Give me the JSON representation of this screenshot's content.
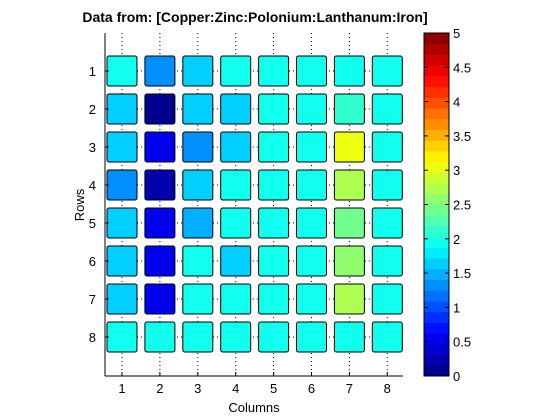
{
  "chart_data": {
    "type": "heatmap",
    "title": "Data from: [Copper:Zinc:Polonium:Lanthanum:Iron]",
    "xlabel": "Columns",
    "ylabel": "Rows",
    "x_ticks": [
      "1",
      "2",
      "3",
      "4",
      "5",
      "6",
      "7",
      "8"
    ],
    "y_ticks": [
      "1",
      "2",
      "3",
      "4",
      "5",
      "6",
      "7",
      "8"
    ],
    "values": [
      [
        1.9,
        1.3,
        1.6,
        1.9,
        1.9,
        1.9,
        1.9,
        1.9
      ],
      [
        1.6,
        0.1,
        1.6,
        1.6,
        1.9,
        1.9,
        2.1,
        1.9
      ],
      [
        1.6,
        0.6,
        1.3,
        1.6,
        1.9,
        1.9,
        3.0,
        1.9
      ],
      [
        1.3,
        0.3,
        1.6,
        1.9,
        1.9,
        1.9,
        2.7,
        1.9
      ],
      [
        1.6,
        0.6,
        1.5,
        1.9,
        1.9,
        1.9,
        2.4,
        1.9
      ],
      [
        1.6,
        0.6,
        1.9,
        1.6,
        1.9,
        1.9,
        2.5,
        1.9
      ],
      [
        1.6,
        0.5,
        1.9,
        1.9,
        1.9,
        1.9,
        2.7,
        1.9
      ],
      [
        1.9,
        1.9,
        1.9,
        1.9,
        1.9,
        1.9,
        1.9,
        1.9
      ]
    ],
    "colorbar": {
      "range": [
        0,
        5
      ],
      "ticks": [
        "0",
        "0.5",
        "1",
        "1.5",
        "2",
        "2.5",
        "3",
        "3.5",
        "4",
        "4.5",
        "5"
      ],
      "colormap": "jet"
    },
    "grid": true
  }
}
